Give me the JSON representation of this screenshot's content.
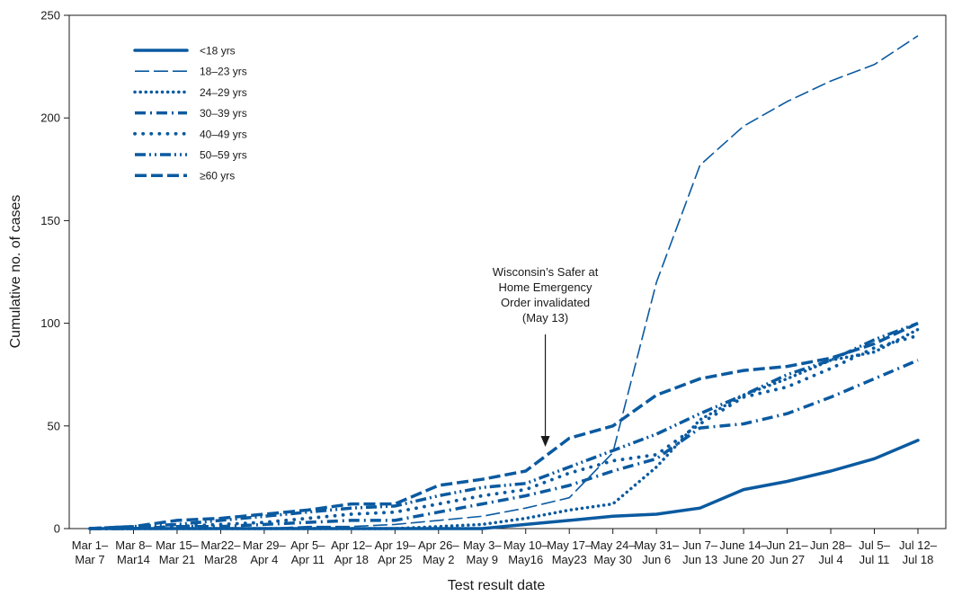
{
  "chart_data": {
    "type": "line",
    "xlabel": "Test result date",
    "ylabel": "Cumulative no. of cases",
    "ylim": [
      0,
      250
    ],
    "yticks": [
      0,
      50,
      100,
      150,
      200,
      250
    ],
    "grid": false,
    "legend_position": "top-left",
    "color": "#0a5aa0",
    "categories": [
      [
        "Mar 1–",
        "Mar 7"
      ],
      [
        "Mar 8–",
        "Mar14"
      ],
      [
        "Mar 15–",
        "Mar 21"
      ],
      [
        "Mar22–",
        "Mar28"
      ],
      [
        "Mar 29–",
        "Apr 4"
      ],
      [
        "Apr 5–",
        "Apr 11"
      ],
      [
        "Apr 12–",
        "Apr 18"
      ],
      [
        "Apr 19–",
        "Apr 25"
      ],
      [
        "Apr 26–",
        "May 2"
      ],
      [
        "May 3–",
        "May 9"
      ],
      [
        "May 10–",
        "May16"
      ],
      [
        "May 17–",
        "May23"
      ],
      [
        "May 24–",
        "May 30"
      ],
      [
        "May 31–",
        "Jun 6"
      ],
      [
        "Jun 7–",
        "Jun 13"
      ],
      [
        "June 14–",
        "June 20"
      ],
      [
        "Jun 21–",
        "Jun 27"
      ],
      [
        "Jun 28–",
        "Jul 4"
      ],
      [
        "Jul 5–",
        "Jul 11"
      ],
      [
        "Jul 12–",
        "Jul 18"
      ]
    ],
    "series": [
      {
        "name": "<18 yrs",
        "style": "solid",
        "values": [
          0,
          0,
          0,
          0,
          0,
          0,
          0,
          0,
          0,
          0,
          2,
          4,
          6,
          7,
          10,
          19,
          23,
          28,
          34,
          43
        ]
      },
      {
        "name": "18–23 yrs",
        "style": "longdash",
        "values": [
          0,
          0,
          0,
          0,
          0,
          1,
          1,
          2,
          4,
          6,
          10,
          15,
          37,
          120,
          177,
          196,
          208,
          218,
          226,
          240
        ]
      },
      {
        "name": "24–29 yrs",
        "style": "dot",
        "values": [
          0,
          0,
          0,
          0,
          0,
          0,
          0,
          0,
          1,
          2,
          5,
          9,
          12,
          30,
          53,
          65,
          73,
          82,
          86,
          97
        ]
      },
      {
        "name": "30–39 yrs",
        "style": "dashdot",
        "values": [
          0,
          0,
          1,
          1,
          2,
          3,
          4,
          4,
          8,
          12,
          16,
          21,
          28,
          34,
          49,
          51,
          56,
          64,
          73,
          82
        ]
      },
      {
        "name": "40–49 yrs",
        "style": "dotsparse",
        "values": [
          0,
          0,
          1,
          2,
          3,
          5,
          7,
          8,
          12,
          16,
          19,
          27,
          33,
          36,
          51,
          64,
          69,
          78,
          88,
          94
        ]
      },
      {
        "name": "50–59 yrs",
        "style": "dashdotdot",
        "values": [
          0,
          1,
          2,
          4,
          6,
          8,
          10,
          11,
          16,
          20,
          22,
          30,
          38,
          46,
          56,
          65,
          75,
          82,
          92,
          100
        ]
      },
      {
        "name": "≥60 yrs",
        "style": "dashdash",
        "values": [
          0,
          1,
          4,
          5,
          7,
          9,
          12,
          12,
          21,
          24,
          28,
          44,
          50,
          65,
          73,
          77,
          79,
          83,
          90,
          100
        ]
      }
    ],
    "annotations": [
      {
        "lines": [
          "Wisconsin’s Safer at",
          "Home Emergency",
          "Order invalidated",
          "(May 13)"
        ],
        "arrow_at_category": 10.45
      }
    ]
  }
}
